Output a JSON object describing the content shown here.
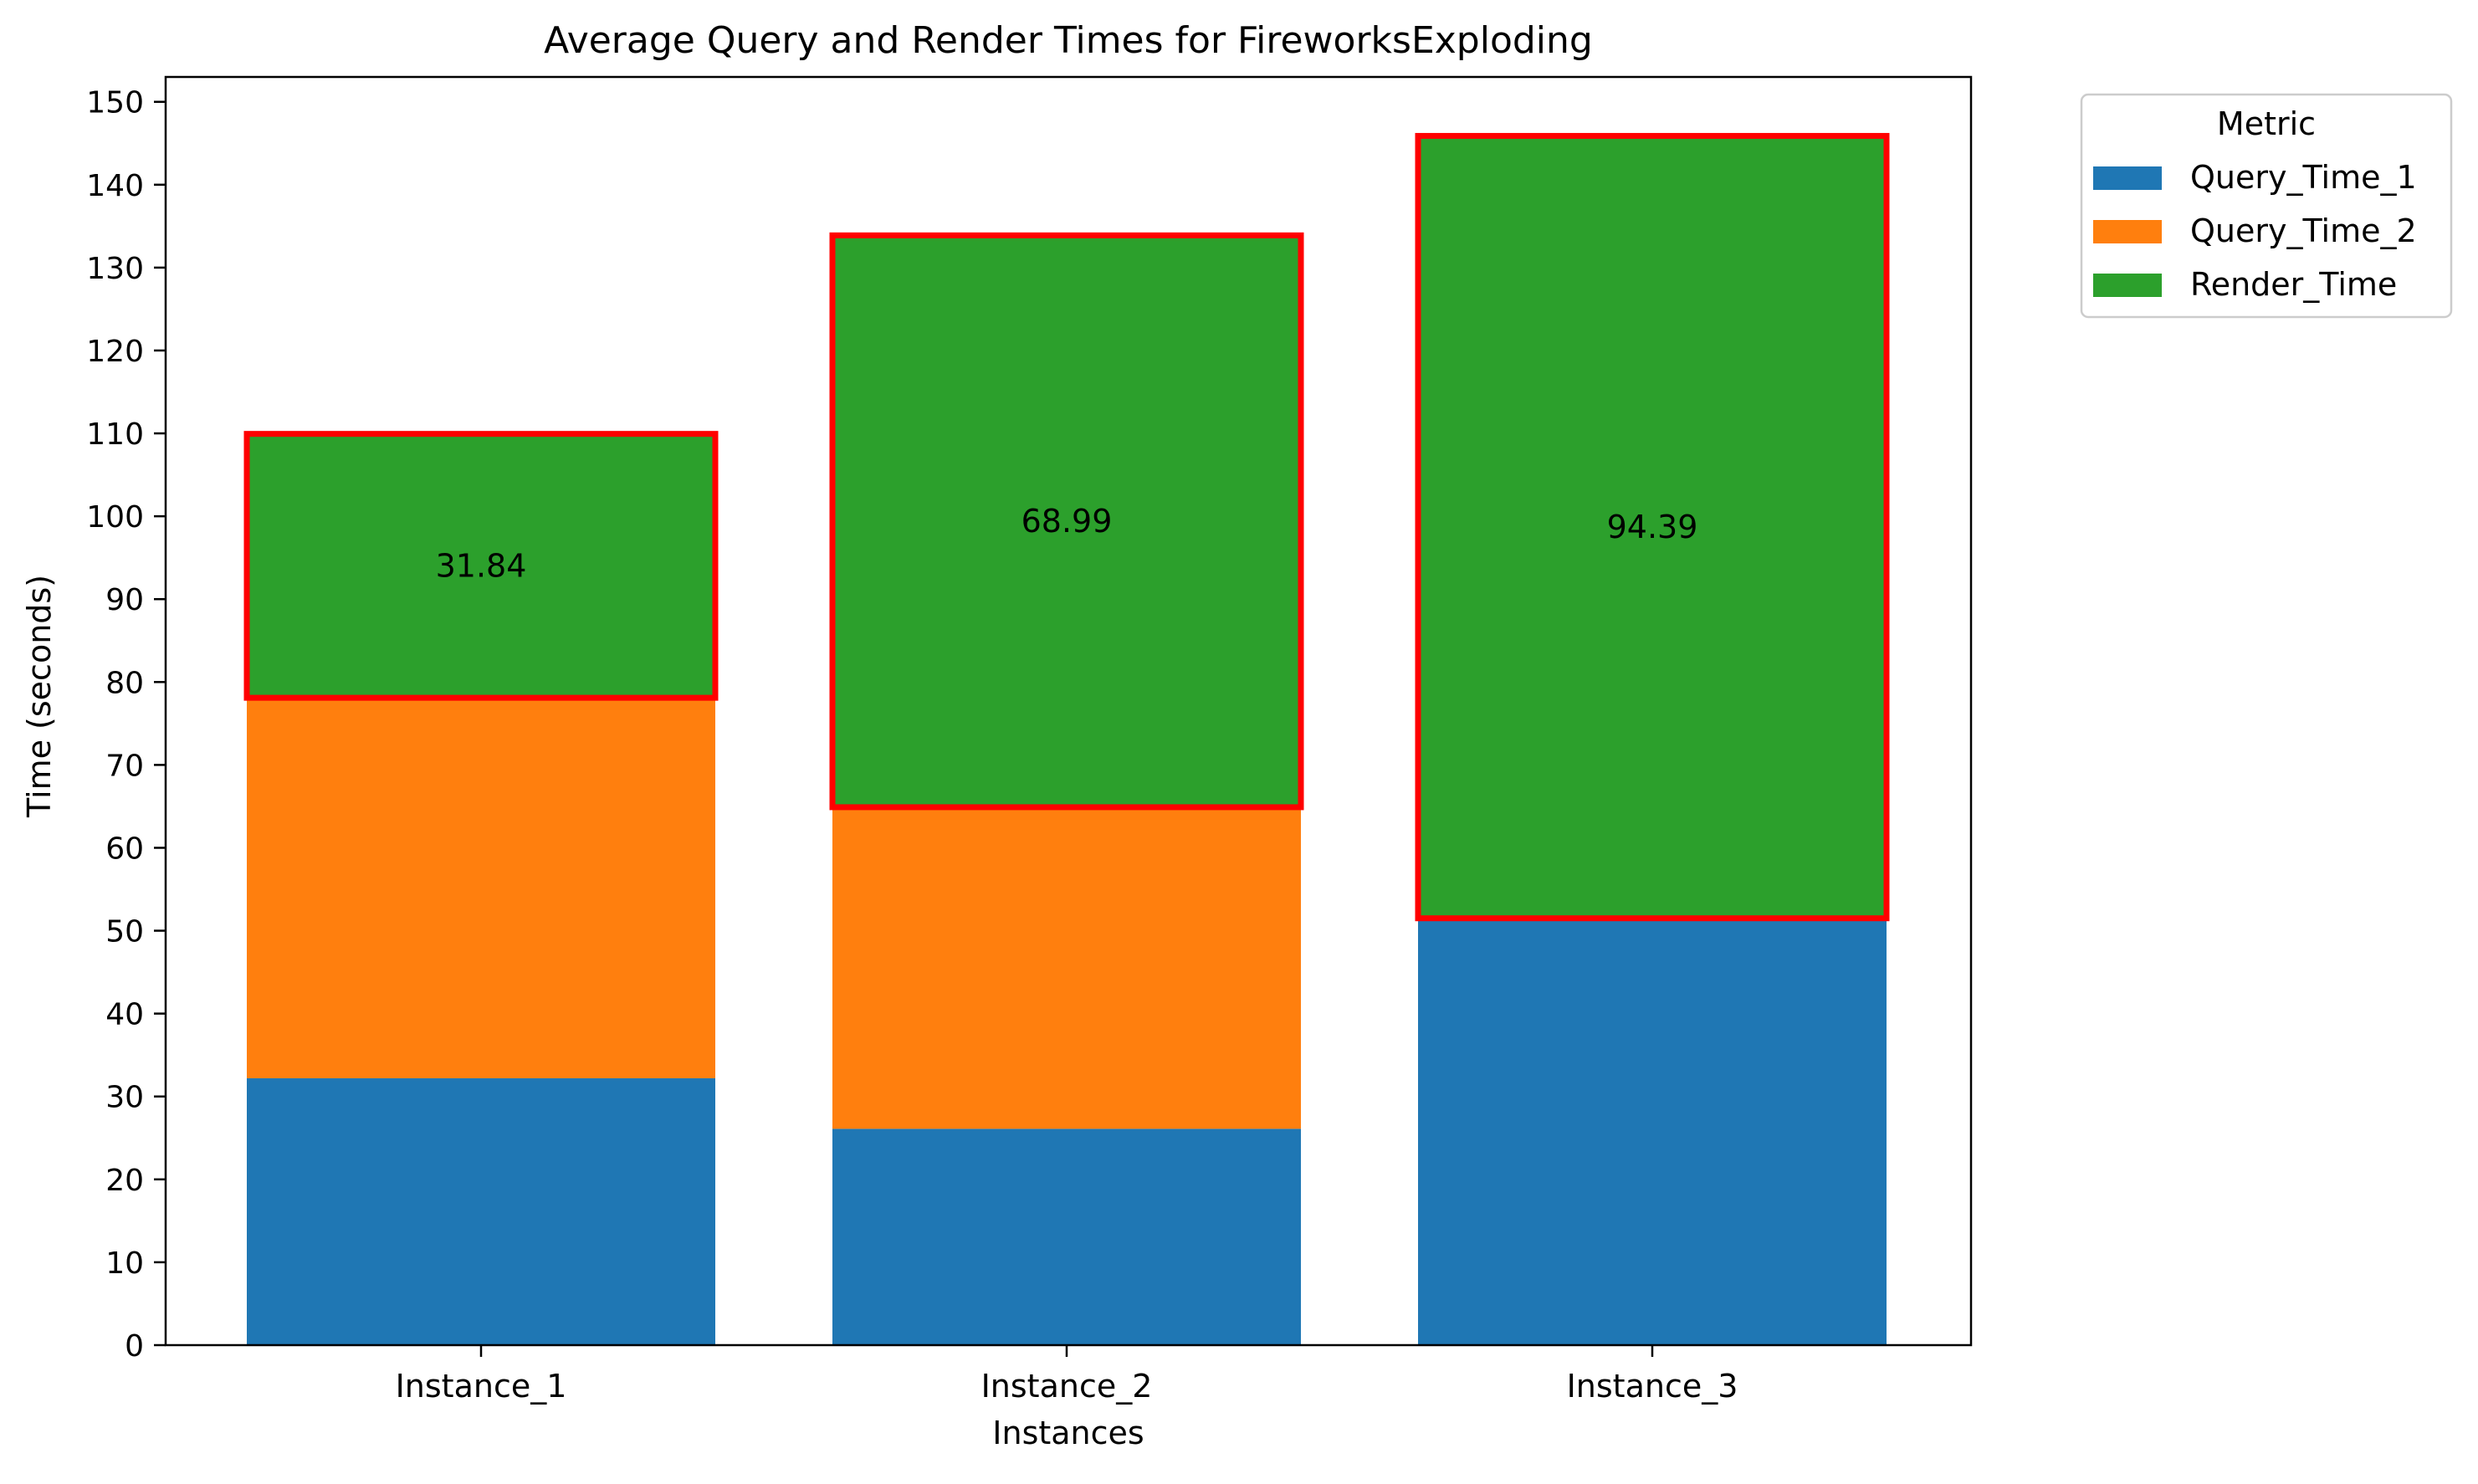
{
  "chart_data": {
    "type": "bar",
    "stacked": true,
    "title": "Average Query and Render Times for FireworksExploding",
    "xlabel": "Instances",
    "ylabel": "Time (seconds)",
    "categories": [
      "Instance_1",
      "Instance_2",
      "Instance_3"
    ],
    "ylim": [
      0,
      153
    ],
    "yticks": [
      0,
      10,
      20,
      30,
      40,
      50,
      60,
      70,
      80,
      90,
      100,
      110,
      120,
      130,
      140,
      150
    ],
    "grid": false,
    "series": [
      {
        "name": "Query_Time_1",
        "color": "#1f77b4",
        "values": [
          32.2,
          26.1,
          51.5
        ]
      },
      {
        "name": "Query_Time_2",
        "color": "#ff7f0e",
        "values": [
          45.9,
          38.8,
          0
        ]
      },
      {
        "name": "Render_Time",
        "color": "#2ca02c",
        "values": [
          31.84,
          68.99,
          94.39
        ]
      }
    ],
    "data_labels": [
      "31.84",
      "68.99",
      "94.39"
    ],
    "highlight": {
      "series": "Render_Time",
      "color": "#ff0000"
    },
    "legend": {
      "title": "Metric",
      "position": "outside-top-right"
    }
  }
}
